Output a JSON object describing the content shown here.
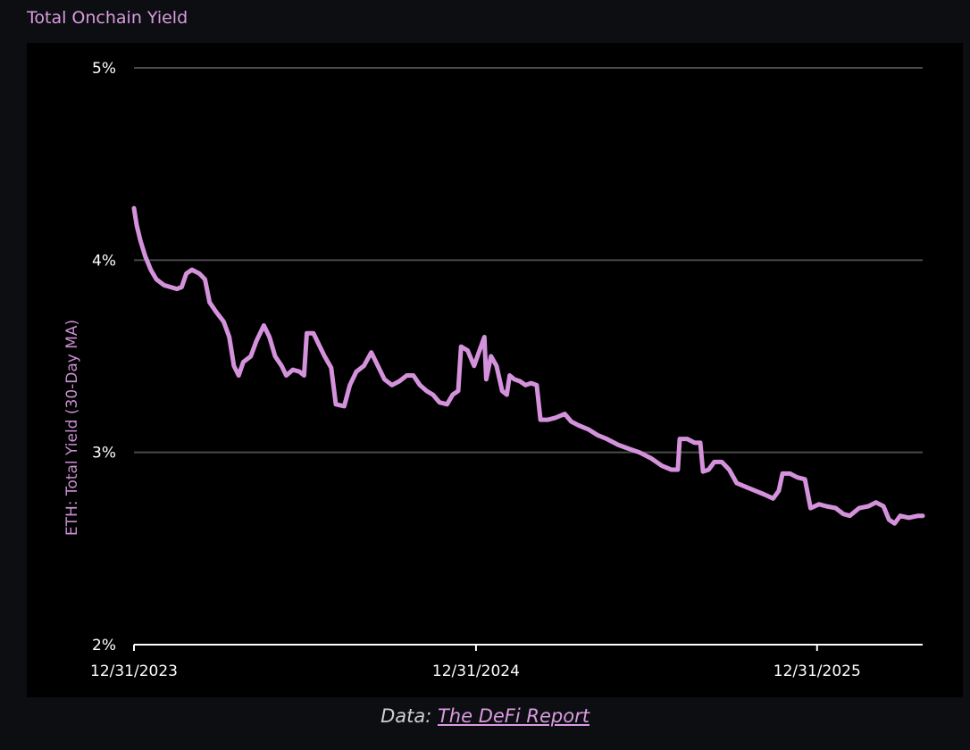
{
  "header": {
    "title": "Total Onchain Yield"
  },
  "footer": {
    "prefix": "Data: ",
    "source_link": "The DeFi Report"
  },
  "colors": {
    "line": "#d592dc",
    "title": "#d99be0",
    "grid": "#4a4a4a",
    "background": "#000000"
  },
  "chart_data": {
    "type": "line",
    "title": "Total Onchain Yield",
    "ylabel": "ETH: Total Yield (30-Day MA)",
    "xlabel": "",
    "ylim": [
      2,
      5
    ],
    "x_ticks": [
      "12/31/2023",
      "12/31/2024",
      "12/31/2025"
    ],
    "y_ticks": [
      "2%",
      "3%",
      "4%",
      "5%"
    ],
    "y_tick_values": [
      2,
      3,
      4,
      5
    ],
    "grid": true,
    "series": [
      {
        "values": [
          [
            "2023-12-31",
            4.27
          ],
          [
            "2024-01-03",
            4.18
          ],
          [
            "2024-01-07",
            4.1
          ],
          [
            "2024-01-12",
            4.02
          ],
          [
            "2024-01-18",
            3.95
          ],
          [
            "2024-01-24",
            3.9
          ],
          [
            "2024-02-01",
            3.87
          ],
          [
            "2024-02-08",
            3.86
          ],
          [
            "2024-02-15",
            3.85
          ],
          [
            "2024-02-20",
            3.86
          ],
          [
            "2024-02-25",
            3.93
          ],
          [
            "2024-03-02",
            3.95
          ],
          [
            "2024-03-10",
            3.93
          ],
          [
            "2024-03-16",
            3.9
          ],
          [
            "2024-03-21",
            3.78
          ],
          [
            "2024-03-28",
            3.73
          ],
          [
            "2024-04-05",
            3.68
          ],
          [
            "2024-04-11",
            3.6
          ],
          [
            "2024-04-16",
            3.45
          ],
          [
            "2024-04-21",
            3.4
          ],
          [
            "2024-04-26",
            3.47
          ],
          [
            "2024-05-04",
            3.5
          ],
          [
            "2024-05-10",
            3.58
          ],
          [
            "2024-05-18",
            3.66
          ],
          [
            "2024-05-24",
            3.6
          ],
          [
            "2024-05-30",
            3.5
          ],
          [
            "2024-06-06",
            3.45
          ],
          [
            "2024-06-11",
            3.4
          ],
          [
            "2024-06-18",
            3.43
          ],
          [
            "2024-06-25",
            3.42
          ],
          [
            "2024-06-30",
            3.4
          ],
          [
            "2024-07-03",
            3.62
          ],
          [
            "2024-07-10",
            3.62
          ],
          [
            "2024-07-16",
            3.56
          ],
          [
            "2024-07-22",
            3.5
          ],
          [
            "2024-07-29",
            3.44
          ],
          [
            "2024-08-03",
            3.25
          ],
          [
            "2024-08-12",
            3.24
          ],
          [
            "2024-08-18",
            3.35
          ],
          [
            "2024-08-25",
            3.42
          ],
          [
            "2024-09-02",
            3.45
          ],
          [
            "2024-09-10",
            3.52
          ],
          [
            "2024-09-17",
            3.45
          ],
          [
            "2024-09-24",
            3.38
          ],
          [
            "2024-10-02",
            3.35
          ],
          [
            "2024-10-10",
            3.37
          ],
          [
            "2024-10-18",
            3.4
          ],
          [
            "2024-10-25",
            3.4
          ],
          [
            "2024-11-01",
            3.35
          ],
          [
            "2024-11-08",
            3.32
          ],
          [
            "2024-11-15",
            3.3
          ],
          [
            "2024-11-22",
            3.26
          ],
          [
            "2024-11-30",
            3.25
          ],
          [
            "2024-12-06",
            3.3
          ],
          [
            "2024-12-12",
            3.32
          ],
          [
            "2024-12-15",
            3.55
          ],
          [
            "2024-12-22",
            3.53
          ],
          [
            "2024-12-29",
            3.45
          ],
          [
            "2025-01-03",
            3.52
          ],
          [
            "2025-01-09",
            3.6
          ],
          [
            "2025-01-11",
            3.38
          ],
          [
            "2025-01-16",
            3.5
          ],
          [
            "2025-01-22",
            3.45
          ],
          [
            "2025-01-28",
            3.32
          ],
          [
            "2025-02-02",
            3.3
          ],
          [
            "2025-02-05",
            3.4
          ],
          [
            "2025-02-10",
            3.38
          ],
          [
            "2025-02-16",
            3.37
          ],
          [
            "2025-02-22",
            3.35
          ],
          [
            "2025-02-28",
            3.36
          ],
          [
            "2025-03-06",
            3.35
          ],
          [
            "2025-03-10",
            3.17
          ],
          [
            "2025-03-18",
            3.17
          ],
          [
            "2025-03-26",
            3.18
          ],
          [
            "2025-04-05",
            3.2
          ],
          [
            "2025-04-12",
            3.16
          ],
          [
            "2025-04-20",
            3.14
          ],
          [
            "2025-04-30",
            3.12
          ],
          [
            "2025-05-10",
            3.09
          ],
          [
            "2025-05-20",
            3.07
          ],
          [
            "2025-06-01",
            3.04
          ],
          [
            "2025-06-12",
            3.02
          ],
          [
            "2025-06-24",
            3.0
          ],
          [
            "2025-07-06",
            2.97
          ],
          [
            "2025-07-18",
            2.93
          ],
          [
            "2025-07-28",
            2.91
          ],
          [
            "2025-08-04",
            2.91
          ],
          [
            "2025-08-06",
            3.07
          ],
          [
            "2025-08-14",
            3.07
          ],
          [
            "2025-08-22",
            3.05
          ],
          [
            "2025-08-28",
            3.05
          ],
          [
            "2025-08-31",
            2.9
          ],
          [
            "2025-09-06",
            2.91
          ],
          [
            "2025-09-12",
            2.95
          ],
          [
            "2025-09-20",
            2.95
          ],
          [
            "2025-09-28",
            2.91
          ],
          [
            "2025-10-06",
            2.84
          ],
          [
            "2025-10-16",
            2.82
          ],
          [
            "2025-10-26",
            2.8
          ],
          [
            "2025-11-05",
            2.78
          ],
          [
            "2025-11-14",
            2.76
          ],
          [
            "2025-11-20",
            2.8
          ],
          [
            "2025-11-24",
            2.89
          ],
          [
            "2025-12-02",
            2.89
          ],
          [
            "2025-12-10",
            2.87
          ],
          [
            "2025-12-18",
            2.86
          ],
          [
            "2025-12-24",
            2.71
          ],
          [
            "2026-01-02",
            2.73
          ],
          [
            "2026-01-10",
            2.72
          ],
          [
            "2026-01-20",
            2.71
          ],
          [
            "2026-01-28",
            2.68
          ],
          [
            "2026-02-04",
            2.67
          ],
          [
            "2026-02-14",
            2.71
          ],
          [
            "2026-02-24",
            2.72
          ],
          [
            "2026-03-04",
            2.74
          ],
          [
            "2026-03-12",
            2.72
          ],
          [
            "2026-03-18",
            2.65
          ],
          [
            "2026-03-24",
            2.63
          ],
          [
            "2026-03-30",
            2.67
          ],
          [
            "2026-04-08",
            2.66
          ],
          [
            "2026-04-18",
            2.67
          ],
          [
            "2026-04-23",
            2.67
          ]
        ]
      }
    ]
  }
}
